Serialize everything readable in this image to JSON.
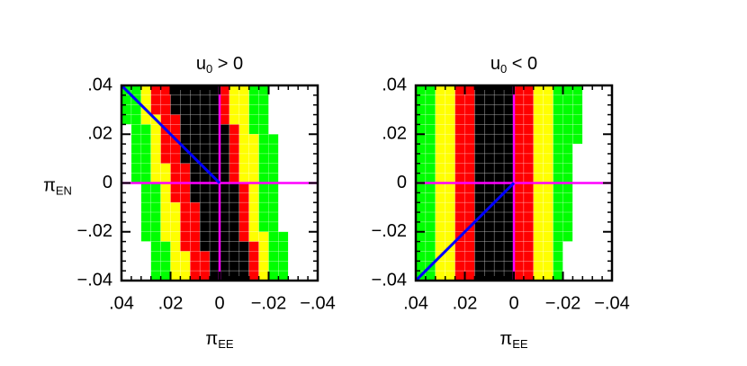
{
  "chart_data": [
    {
      "type": "heatmap",
      "title": {
        "base": "u",
        "subscript": "0",
        "rest": " > 0"
      },
      "xlabel": {
        "symbol": "π",
        "subscript": "EE"
      },
      "ylabel": {
        "symbol": "π",
        "subscript": "EN"
      },
      "xlim": [
        0.04,
        -0.04
      ],
      "ylim": [
        -0.04,
        0.04
      ],
      "xticks": [
        {
          "value": 0.04,
          "label": ".04"
        },
        {
          "value": 0.02,
          "label": ".02"
        },
        0,
        {
          "value": -0.02,
          "label": "−.02"
        },
        {
          "value": -0.04,
          "label": "−.04"
        }
      ],
      "yticks": [
        {
          "value": 0.04,
          "label": ".04"
        },
        {
          "value": 0.02,
          "label": ".02"
        },
        0,
        {
          "value": -0.02,
          "label": "−.02"
        },
        {
          "value": -0.04,
          "label": "−.04"
        }
      ],
      "colors": [
        "#000000",
        "#ff0000",
        "#ffff00",
        "#00ff00",
        "#ffffff"
      ],
      "values": [
        [
          3,
          3,
          2,
          1,
          1,
          0,
          0,
          0,
          0,
          0,
          1,
          2,
          2,
          3,
          3,
          4,
          4,
          4,
          4,
          4
        ],
        [
          3,
          3,
          2,
          1,
          1,
          0,
          0,
          0,
          0,
          0,
          1,
          2,
          2,
          3,
          3,
          4,
          4,
          4,
          4,
          4
        ],
        [
          3,
          3,
          2,
          1,
          1,
          0,
          0,
          0,
          0,
          0,
          1,
          2,
          2,
          3,
          3,
          4,
          4,
          4,
          4,
          4
        ],
        [
          3,
          3,
          2,
          2,
          1,
          1,
          0,
          0,
          0,
          0,
          1,
          2,
          2,
          3,
          3,
          4,
          4,
          4,
          4,
          4
        ],
        [
          4,
          3,
          3,
          2,
          1,
          1,
          0,
          0,
          0,
          0,
          0,
          1,
          2,
          3,
          3,
          4,
          4,
          4,
          4,
          4
        ],
        [
          4,
          3,
          3,
          2,
          1,
          1,
          0,
          0,
          0,
          0,
          0,
          1,
          2,
          2,
          3,
          3,
          4,
          4,
          4,
          4
        ],
        [
          4,
          3,
          3,
          2,
          1,
          1,
          0,
          0,
          0,
          0,
          0,
          1,
          2,
          2,
          3,
          3,
          4,
          4,
          4,
          4
        ],
        [
          4,
          3,
          3,
          2,
          1,
          1,
          0,
          0,
          0,
          0,
          0,
          1,
          2,
          2,
          3,
          3,
          4,
          4,
          4,
          4
        ],
        [
          4,
          3,
          3,
          2,
          2,
          1,
          1,
          0,
          0,
          0,
          0,
          1,
          2,
          2,
          3,
          3,
          4,
          4,
          4,
          4
        ],
        [
          4,
          3,
          3,
          2,
          2,
          1,
          1,
          0,
          0,
          0,
          0,
          1,
          2,
          2,
          3,
          3,
          4,
          4,
          4,
          4
        ],
        [
          4,
          4,
          3,
          3,
          2,
          1,
          1,
          0,
          0,
          0,
          0,
          0,
          1,
          2,
          3,
          3,
          4,
          4,
          4,
          4
        ],
        [
          4,
          4,
          3,
          3,
          2,
          1,
          1,
          0,
          0,
          0,
          0,
          0,
          1,
          2,
          3,
          3,
          4,
          4,
          4,
          4
        ],
        [
          4,
          4,
          3,
          3,
          2,
          2,
          1,
          1,
          0,
          0,
          0,
          0,
          1,
          2,
          3,
          3,
          4,
          4,
          4,
          4
        ],
        [
          4,
          4,
          3,
          3,
          2,
          2,
          1,
          1,
          0,
          0,
          0,
          0,
          1,
          2,
          3,
          3,
          4,
          4,
          4,
          4
        ],
        [
          4,
          4,
          3,
          3,
          2,
          2,
          1,
          1,
          0,
          0,
          0,
          0,
          1,
          2,
          3,
          3,
          4,
          4,
          4,
          4
        ],
        [
          4,
          4,
          3,
          3,
          2,
          2,
          1,
          1,
          0,
          0,
          0,
          0,
          1,
          2,
          2,
          3,
          3,
          4,
          4,
          4
        ],
        [
          4,
          4,
          4,
          3,
          3,
          2,
          1,
          1,
          0,
          0,
          0,
          0,
          0,
          1,
          2,
          3,
          3,
          4,
          4,
          4
        ],
        [
          4,
          4,
          4,
          3,
          3,
          2,
          2,
          1,
          1,
          0,
          0,
          0,
          0,
          1,
          2,
          3,
          3,
          4,
          4,
          4
        ],
        [
          4,
          4,
          4,
          3,
          3,
          2,
          2,
          1,
          1,
          0,
          0,
          0,
          0,
          1,
          2,
          3,
          3,
          4,
          4,
          4
        ],
        [
          4,
          4,
          4,
          3,
          3,
          2,
          2,
          1,
          1,
          0,
          0,
          0,
          0,
          1,
          2,
          3,
          3,
          4,
          4,
          4
        ]
      ],
      "reference_lines": {
        "x": 0,
        "y": 0,
        "color": "#ff00ff"
      },
      "lines": [
        {
          "x": [
            0.04,
            0
          ],
          "y": [
            0.04,
            0
          ],
          "color": "#0000ff"
        }
      ]
    },
    {
      "type": "heatmap",
      "title": {
        "base": "u",
        "subscript": "0",
        "rest": " < 0"
      },
      "xlabel": {
        "symbol": "π",
        "subscript": "EE"
      },
      "xlim": [
        0.04,
        -0.04
      ],
      "ylim": [
        -0.04,
        0.04
      ],
      "xticks": [
        {
          "value": 0.04,
          "label": ".04"
        },
        {
          "value": 0.02,
          "label": ".02"
        },
        0,
        {
          "value": -0.02,
          "label": "−.02"
        },
        {
          "value": -0.04,
          "label": "−.04"
        }
      ],
      "yticks": [
        {
          "value": 0.04,
          "label": ".04"
        },
        {
          "value": 0.02,
          "label": ".02"
        },
        0,
        {
          "value": -0.02,
          "label": "−.02"
        },
        {
          "value": -0.04,
          "label": "−.04"
        }
      ],
      "colors": [
        "#000000",
        "#ff0000",
        "#ffff00",
        "#00ff00",
        "#ffffff"
      ],
      "values": [
        [
          3,
          3,
          2,
          2,
          1,
          1,
          0,
          0,
          0,
          0,
          1,
          1,
          2,
          2,
          3,
          3,
          3,
          4,
          4,
          4
        ],
        [
          3,
          3,
          2,
          2,
          1,
          1,
          0,
          0,
          0,
          0,
          1,
          1,
          2,
          2,
          3,
          3,
          3,
          4,
          4,
          4
        ],
        [
          3,
          3,
          2,
          2,
          1,
          1,
          0,
          0,
          0,
          0,
          1,
          1,
          2,
          2,
          3,
          3,
          3,
          4,
          4,
          4
        ],
        [
          3,
          3,
          2,
          2,
          1,
          1,
          0,
          0,
          0,
          0,
          1,
          1,
          2,
          2,
          3,
          3,
          3,
          4,
          4,
          4
        ],
        [
          3,
          3,
          2,
          2,
          1,
          1,
          0,
          0,
          0,
          0,
          1,
          1,
          2,
          2,
          3,
          3,
          3,
          4,
          4,
          4
        ],
        [
          3,
          3,
          2,
          2,
          1,
          1,
          0,
          0,
          0,
          0,
          1,
          1,
          2,
          2,
          3,
          3,
          3,
          4,
          4,
          4
        ],
        [
          3,
          3,
          2,
          2,
          1,
          1,
          0,
          0,
          0,
          0,
          1,
          1,
          2,
          2,
          3,
          3,
          4,
          4,
          4,
          4
        ],
        [
          3,
          3,
          2,
          2,
          1,
          1,
          0,
          0,
          0,
          0,
          1,
          1,
          2,
          2,
          3,
          3,
          4,
          4,
          4,
          4
        ],
        [
          3,
          3,
          2,
          2,
          1,
          1,
          0,
          0,
          0,
          0,
          1,
          1,
          2,
          2,
          3,
          3,
          4,
          4,
          4,
          4
        ],
        [
          3,
          3,
          2,
          2,
          1,
          1,
          0,
          0,
          0,
          0,
          1,
          1,
          2,
          2,
          3,
          3,
          4,
          4,
          4,
          4
        ],
        [
          3,
          3,
          2,
          2,
          1,
          1,
          0,
          0,
          0,
          0,
          1,
          1,
          2,
          2,
          3,
          3,
          4,
          4,
          4,
          4
        ],
        [
          3,
          3,
          2,
          2,
          1,
          1,
          0,
          0,
          0,
          0,
          1,
          1,
          2,
          2,
          3,
          3,
          4,
          4,
          4,
          4
        ],
        [
          3,
          3,
          2,
          2,
          1,
          1,
          0,
          0,
          0,
          0,
          1,
          1,
          2,
          2,
          3,
          3,
          4,
          4,
          4,
          4
        ],
        [
          3,
          3,
          2,
          2,
          1,
          1,
          0,
          0,
          0,
          0,
          1,
          1,
          2,
          2,
          3,
          3,
          4,
          4,
          4,
          4
        ],
        [
          3,
          3,
          2,
          2,
          1,
          1,
          0,
          0,
          0,
          0,
          1,
          1,
          2,
          2,
          3,
          3,
          4,
          4,
          4,
          4
        ],
        [
          3,
          3,
          2,
          2,
          1,
          1,
          0,
          0,
          0,
          0,
          1,
          1,
          2,
          2,
          3,
          3,
          4,
          4,
          4,
          4
        ],
        [
          3,
          3,
          2,
          2,
          1,
          1,
          0,
          0,
          0,
          0,
          1,
          1,
          2,
          2,
          3,
          4,
          4,
          4,
          4,
          4
        ],
        [
          3,
          3,
          2,
          2,
          1,
          1,
          0,
          0,
          0,
          0,
          1,
          1,
          2,
          2,
          3,
          4,
          4,
          4,
          4,
          4
        ],
        [
          3,
          3,
          2,
          2,
          1,
          1,
          0,
          0,
          0,
          0,
          1,
          1,
          2,
          2,
          3,
          4,
          4,
          4,
          4,
          4
        ],
        [
          3,
          3,
          2,
          2,
          1,
          1,
          0,
          0,
          0,
          0,
          1,
          1,
          2,
          2,
          3,
          4,
          4,
          4,
          4,
          4
        ]
      ],
      "reference_lines": {
        "x": 0,
        "y": 0,
        "color": "#ff00ff"
      },
      "lines": [
        {
          "x": [
            0.04,
            0
          ],
          "y": [
            -0.04,
            0
          ],
          "color": "#0000ff"
        }
      ]
    }
  ]
}
